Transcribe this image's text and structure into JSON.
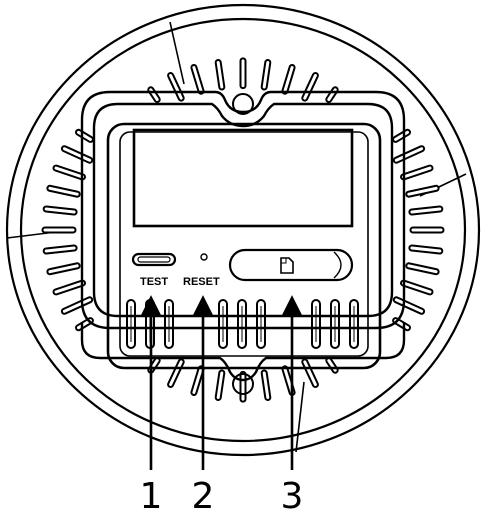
{
  "device": {
    "test_label": "TEST",
    "reset_label": "RESET",
    "card_slot_icon": "sd-card-icon"
  },
  "callouts": [
    {
      "number": "1",
      "target": "test"
    },
    {
      "number": "2",
      "target": "reset"
    },
    {
      "number": "3",
      "target": "card-slot"
    }
  ],
  "colors": {
    "line": "#000000",
    "background": "#ffffff"
  }
}
